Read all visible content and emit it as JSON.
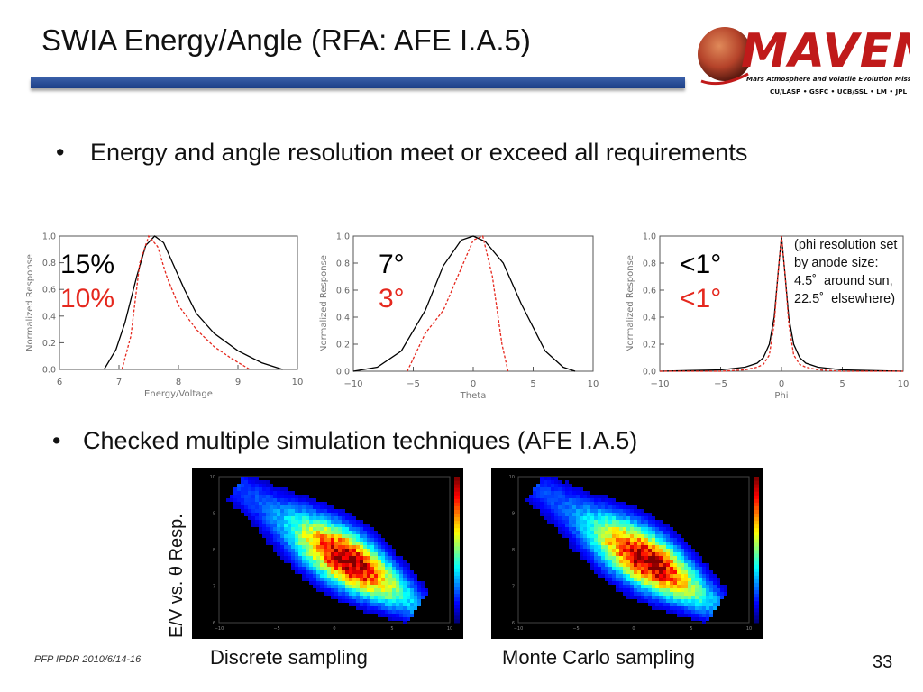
{
  "slide": {
    "title": "SWIA Energy/Angle (RFA: AFE I.A.5)",
    "bullet1": "Energy and angle resolution meet or exceed all requirements",
    "bullet2": "Checked multiple simulation techniques (AFE I.A.5)",
    "bullet_char": "•",
    "footer": "PFP IPDR 2010/6/14-16",
    "page_number": "33"
  },
  "logo": {
    "wordmark": "MAVEN",
    "tagline": "Mars Atmosphere and Volatile Evolution Mission",
    "partners": "CU/LASP • GSFC • UCB/SSL • LM • JPL"
  },
  "colors": {
    "title_bar": "#2a4e98",
    "measured": "#000000",
    "required": "#e5281e",
    "logo_red": "#c01a1a"
  },
  "annotations": {
    "energy": {
      "measured": "15%",
      "required": "10%"
    },
    "theta": {
      "measured": "7°",
      "required": "3°"
    },
    "phi": {
      "measured": "<1°",
      "required": "<1°"
    },
    "phi_note": "(phi resolution set\nby anode size:\n4.5˚  around sun,\n22.5˚  elsewhere)"
  },
  "heatmaps": {
    "ylabel": "E/V vs. θ Resp.",
    "left_caption": "Discrete sampling",
    "right_caption": "Monte Carlo sampling",
    "xticks": [
      "−10",
      "−5",
      "0",
      "5",
      "10"
    ],
    "yticks": [
      "6",
      "7",
      "8",
      "9",
      "10"
    ]
  },
  "chart_data": [
    {
      "type": "line",
      "xlabel": "Energy/Voltage",
      "ylabel": "Normalized Response",
      "xlim": [
        6,
        10
      ],
      "ylim": [
        0,
        1.0
      ],
      "xticks": [
        "6",
        "7",
        "8",
        "9",
        "10"
      ],
      "yticks": [
        "0.0",
        "0.2",
        "0.4",
        "0.6",
        "0.8",
        "1.0"
      ],
      "series": [
        {
          "style": "solid",
          "color": "#000000",
          "x": [
            6.75,
            6.95,
            7.1,
            7.3,
            7.45,
            7.6,
            7.75,
            7.9,
            8.1,
            8.3,
            8.6,
            9.0,
            9.4,
            9.75
          ],
          "y": [
            0.0,
            0.15,
            0.35,
            0.7,
            0.93,
            1.0,
            0.95,
            0.8,
            0.6,
            0.42,
            0.27,
            0.14,
            0.05,
            0.0
          ]
        },
        {
          "style": "dashed",
          "color": "#e5281e",
          "x": [
            7.05,
            7.2,
            7.35,
            7.5,
            7.65,
            7.8,
            8.0,
            8.3,
            8.6,
            8.9,
            9.2
          ],
          "y": [
            0.0,
            0.25,
            0.8,
            1.0,
            0.92,
            0.7,
            0.48,
            0.3,
            0.17,
            0.08,
            0.0
          ]
        }
      ]
    },
    {
      "type": "line",
      "xlabel": "Theta",
      "ylabel": "Normalized Response",
      "xlim": [
        -10,
        10
      ],
      "ylim": [
        0,
        1.0
      ],
      "xticks": [
        "−10",
        "−5",
        "0",
        "5",
        "10"
      ],
      "yticks": [
        "0.0",
        "0.2",
        "0.4",
        "0.6",
        "0.8",
        "1.0"
      ],
      "series": [
        {
          "style": "solid",
          "color": "#000000",
          "x": [
            -10,
            -8,
            -6,
            -4,
            -2.5,
            -1,
            0,
            1,
            2.5,
            4,
            6,
            7.5,
            8.5
          ],
          "y": [
            0.0,
            0.03,
            0.15,
            0.45,
            0.78,
            0.97,
            1.0,
            0.96,
            0.8,
            0.5,
            0.15,
            0.03,
            0.0
          ]
        },
        {
          "style": "dashed",
          "color": "#e5281e",
          "x": [
            -5.5,
            -4,
            -2.5,
            -1.2,
            0,
            0.8,
            1.6,
            2.4,
            2.9
          ],
          "y": [
            0.0,
            0.28,
            0.45,
            0.72,
            0.97,
            1.0,
            0.7,
            0.2,
            0.0
          ]
        }
      ]
    },
    {
      "type": "line",
      "xlabel": "Phi",
      "ylabel": "Normalized Response",
      "xlim": [
        -10,
        10
      ],
      "ylim": [
        0,
        1.0
      ],
      "xticks": [
        "−10",
        "−5",
        "0",
        "5",
        "10"
      ],
      "yticks": [
        "0.0",
        "0.2",
        "0.4",
        "0.6",
        "0.8",
        "1.0"
      ],
      "series": [
        {
          "style": "solid",
          "color": "#000000",
          "x": [
            -10,
            -5,
            -3,
            -2,
            -1.5,
            -1,
            -0.6,
            -0.3,
            0,
            0.3,
            0.6,
            1,
            1.5,
            2,
            3,
            5,
            10
          ],
          "y": [
            0.0,
            0.01,
            0.03,
            0.06,
            0.1,
            0.2,
            0.4,
            0.7,
            1.0,
            0.7,
            0.4,
            0.2,
            0.1,
            0.06,
            0.03,
            0.01,
            0.0
          ]
        },
        {
          "style": "dashed",
          "color": "#e5281e",
          "x": [
            -10,
            -5,
            -3,
            -2,
            -1.5,
            -1,
            -0.6,
            -0.3,
            0,
            0.3,
            0.6,
            1,
            1.5,
            2,
            3,
            5,
            10
          ],
          "y": [
            0.0,
            0.0,
            0.01,
            0.03,
            0.05,
            0.12,
            0.35,
            0.7,
            1.0,
            0.7,
            0.35,
            0.12,
            0.05,
            0.03,
            0.01,
            0.0,
            0.0
          ]
        }
      ]
    },
    {
      "type": "heatmap",
      "title": "Discrete sampling",
      "xlabel": "",
      "ylabel": "",
      "xlim": [
        -10,
        10
      ],
      "ylim": [
        6,
        10
      ]
    },
    {
      "type": "heatmap",
      "title": "Monte Carlo sampling",
      "xlabel": "",
      "ylabel": "",
      "xlim": [
        -10,
        10
      ],
      "ylim": [
        6,
        10
      ]
    }
  ]
}
